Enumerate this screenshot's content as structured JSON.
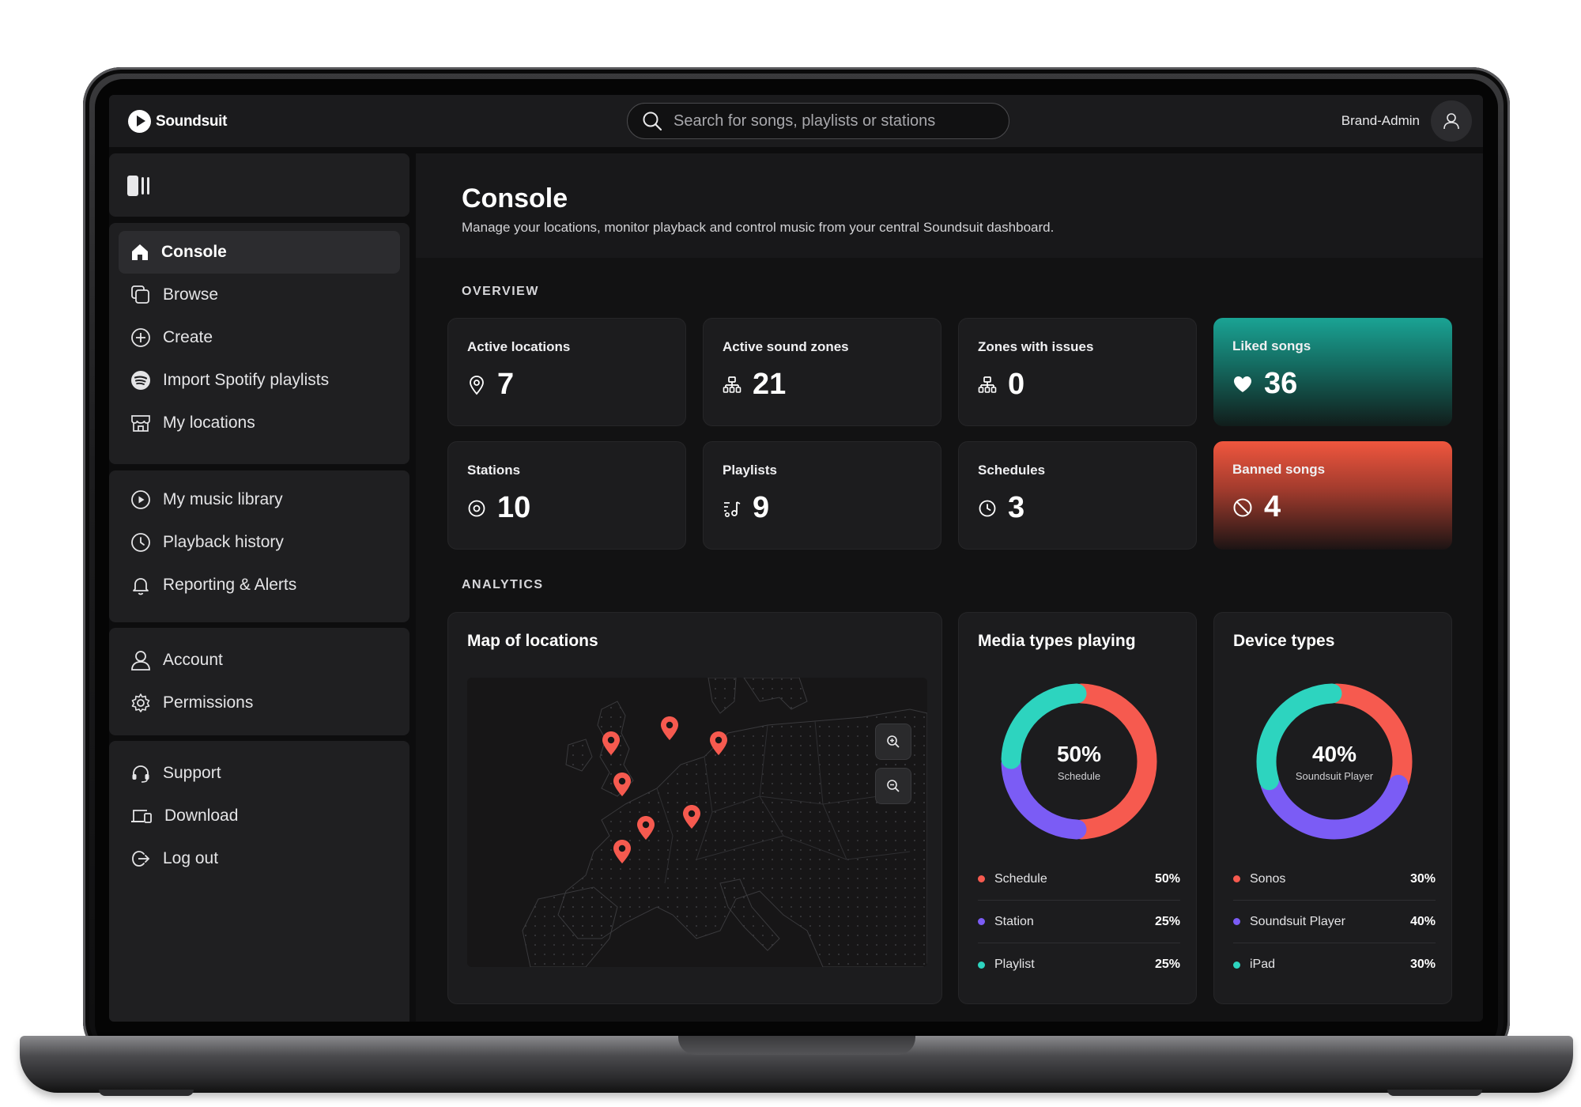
{
  "app": {
    "brand": "Soundsuit",
    "search_placeholder": "Search for songs, playlists or stations",
    "user_name": "Brand-Admin"
  },
  "sidebar": {
    "group1": [
      {
        "label": "Console",
        "icon": "home-icon",
        "active": true
      },
      {
        "label": "Browse",
        "icon": "browse-icon"
      },
      {
        "label": "Create",
        "icon": "plus-circle-icon"
      },
      {
        "label": "Import Spotify playlists",
        "icon": "spotify-icon"
      },
      {
        "label": "My locations",
        "icon": "store-icon"
      }
    ],
    "group2": [
      {
        "label": "My music library",
        "icon": "play-circle-icon"
      },
      {
        "label": "Playback history",
        "icon": "clock-icon"
      },
      {
        "label": "Reporting & Alerts",
        "icon": "bell-icon"
      }
    ],
    "group3": [
      {
        "label": "Account",
        "icon": "user-icon"
      },
      {
        "label": "Permissions",
        "icon": "gear-icon"
      }
    ],
    "group4": [
      {
        "label": "Support",
        "icon": "headset-icon"
      },
      {
        "label": "Download",
        "icon": "devices-icon"
      },
      {
        "label": "Log out",
        "icon": "logout-icon"
      }
    ]
  },
  "page": {
    "title": "Console",
    "subtitle": "Manage your locations, monitor playback and control music from your central Soundsuit dashboard."
  },
  "overview": {
    "label": "OVERVIEW",
    "cards": [
      {
        "label": "Active locations",
        "value": "7",
        "icon": "location-pin-icon"
      },
      {
        "label": "Active sound zones",
        "value": "21",
        "icon": "zones-icon"
      },
      {
        "label": "Zones with issues",
        "value": "0",
        "icon": "zones-icon"
      },
      {
        "label": "Liked songs",
        "value": "36",
        "icon": "heart-icon"
      },
      {
        "label": "Stations",
        "value": "10",
        "icon": "station-icon"
      },
      {
        "label": "Playlists",
        "value": "9",
        "icon": "playlist-icon"
      },
      {
        "label": "Schedules",
        "value": "3",
        "icon": "clock-icon"
      },
      {
        "label": "Banned songs",
        "value": "4",
        "icon": "ban-icon"
      }
    ]
  },
  "analytics": {
    "label": "ANALYTICS",
    "map": {
      "title": "Map of locations",
      "zoom_in": "zoom-in-icon",
      "zoom_out": "zoom-out-icon",
      "marker_count": 7
    },
    "media": {
      "title": "Media types playing",
      "center_value": "50%",
      "center_caption": "Schedule",
      "items": [
        {
          "name": "Schedule",
          "value": "50%",
          "share": 50,
          "color": "#f65a4f"
        },
        {
          "name": "Station",
          "value": "25%",
          "share": 25,
          "color": "#7b5cf5"
        },
        {
          "name": "Playlist",
          "value": "25%",
          "share": 25,
          "color": "#2dd4bf"
        }
      ]
    },
    "devices": {
      "title": "Device types",
      "center_value": "40%",
      "center_caption": "Soundsuit Player",
      "items": [
        {
          "name": "Sonos",
          "value": "30%",
          "share": 30,
          "color": "#f65a4f"
        },
        {
          "name": "Soundsuit Player",
          "value": "40%",
          "share": 40,
          "color": "#7b5cf5"
        },
        {
          "name": "iPad",
          "value": "30%",
          "share": 30,
          "color": "#2dd4bf"
        }
      ]
    }
  }
}
